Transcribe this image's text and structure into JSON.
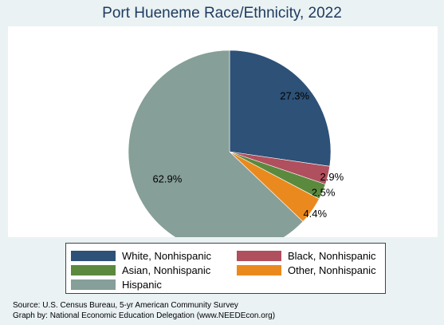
{
  "chart_data": {
    "type": "pie",
    "title": "Port Hueneme Race/Ethnicity, 2022",
    "slices": [
      {
        "label": "White, Nonhispanic",
        "value": 27.3,
        "display": "27.3%",
        "color": "#2d5177"
      },
      {
        "label": "Black, Nonhispanic",
        "value": 2.9,
        "display": "2.9%",
        "color": "#b04f5d"
      },
      {
        "label": "Asian, Nonhispanic",
        "value": 2.5,
        "display": "2.5%",
        "color": "#5b8a3e"
      },
      {
        "label": "Other, Nonhispanic",
        "value": 4.4,
        "display": "4.4%",
        "color": "#ea8a1e"
      },
      {
        "label": "Hispanic",
        "value": 62.9,
        "display": "62.9%",
        "color": "#869f98"
      }
    ],
    "legend": {
      "placement": "bottom",
      "columns": 2
    }
  },
  "footer": {
    "source": "Source:  U.S. Census Bureau, 5-yr American Community Survey",
    "graph_by": "Graph by: National Economic Education Delegation (www.NEEDEcon.org)"
  }
}
